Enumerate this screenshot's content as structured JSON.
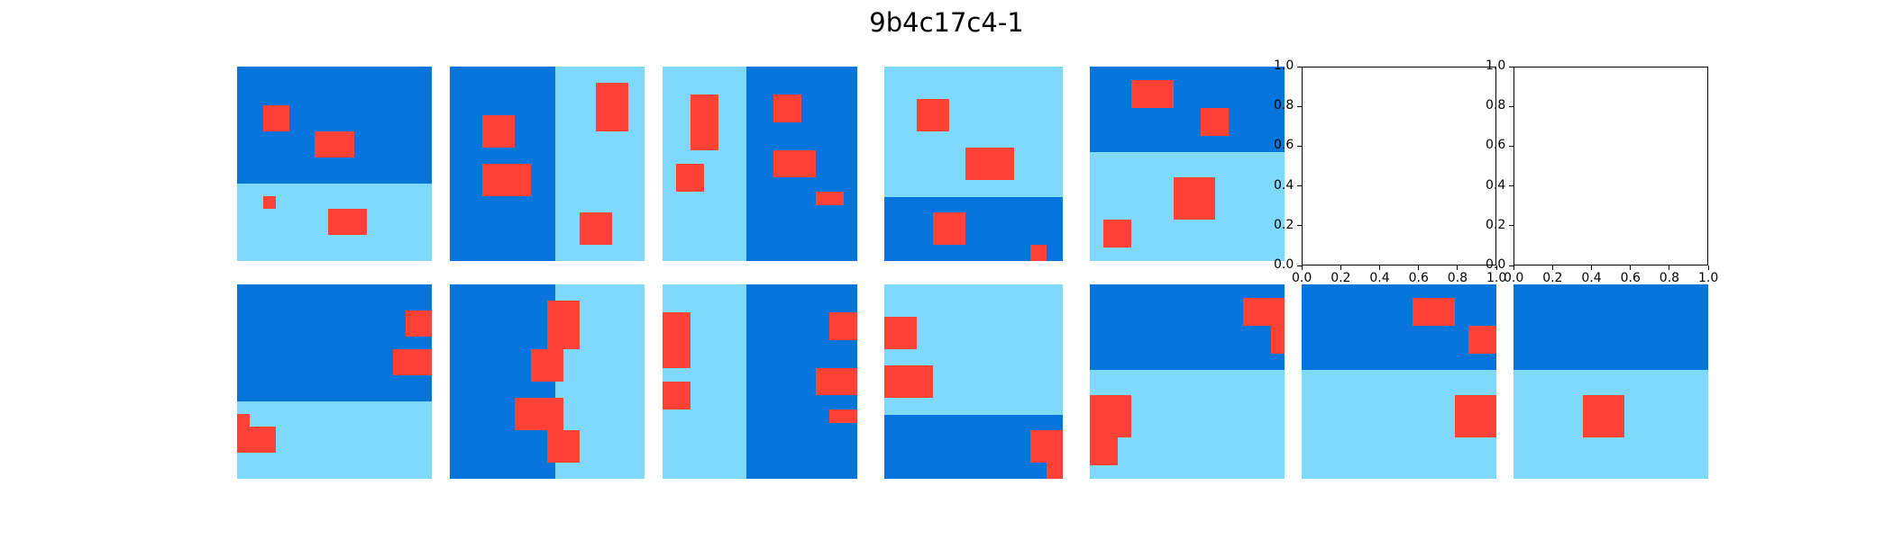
{
  "title": "9b4c17c4-1",
  "colors": {
    "dark": "#0475DA",
    "light": "#7FD9FC",
    "red": "#FF4136"
  },
  "panels": [
    {
      "name": "train-1-input",
      "row": 0,
      "col": 0,
      "split": "h",
      "first": "dark",
      "cut": 0.6,
      "grid": [
        15,
        15
      ],
      "reds": [
        [
          2,
          3,
          2,
          2
        ],
        [
          6,
          5,
          3,
          2
        ],
        [
          2,
          10,
          1,
          1
        ],
        [
          7,
          11,
          3,
          2
        ]
      ]
    },
    {
      "name": "train-2-input",
      "row": 0,
      "col": 1,
      "split": "v",
      "first": "dark",
      "cut": 0.54,
      "grid": [
        12,
        12
      ],
      "reds": [
        [
          2,
          3,
          2,
          2
        ],
        [
          2,
          6,
          3,
          2
        ],
        [
          9,
          1,
          2,
          3
        ],
        [
          8,
          9,
          2,
          2
        ]
      ]
    },
    {
      "name": "train-3-input",
      "row": 0,
      "col": 2,
      "split": "v",
      "first": "light",
      "cut": 0.43,
      "grid": [
        14,
        14
      ],
      "reds": [
        [
          2,
          2,
          2,
          4
        ],
        [
          1,
          7,
          2,
          2
        ],
        [
          8,
          2,
          2,
          2
        ],
        [
          8,
          6,
          3,
          2
        ],
        [
          11,
          9,
          2,
          1
        ]
      ]
    },
    {
      "name": "train-4-input",
      "row": 0,
      "col": 3,
      "split": "h",
      "first": "light",
      "cut": 0.67,
      "grid": [
        11,
        12
      ],
      "reds": [
        [
          2,
          2,
          2,
          2
        ],
        [
          5,
          5,
          3,
          2
        ],
        [
          3,
          9,
          2,
          2
        ],
        [
          9,
          11,
          1,
          1
        ]
      ]
    },
    {
      "name": "train-5-input",
      "row": 0,
      "col": 4,
      "split": "h",
      "first": "dark",
      "cut": 0.44,
      "grid": [
        14,
        14
      ],
      "reds": [
        [
          3,
          1,
          3,
          2
        ],
        [
          8,
          3,
          2,
          2
        ],
        [
          6,
          8,
          3,
          3
        ],
        [
          1,
          11,
          2,
          2
        ]
      ]
    },
    {
      "name": "train-1-output",
      "row": 1,
      "col": 0,
      "split": "h",
      "first": "dark",
      "cut": 0.6,
      "grid": [
        15,
        15
      ],
      "reds": [
        [
          13,
          2,
          2,
          2
        ],
        [
          12,
          5,
          3,
          2
        ],
        [
          0,
          10,
          1,
          1
        ],
        [
          0,
          11,
          3,
          2
        ]
      ]
    },
    {
      "name": "train-2-output",
      "row": 1,
      "col": 1,
      "split": "v",
      "first": "dark",
      "cut": 0.54,
      "grid": [
        12,
        12
      ],
      "reds": [
        [
          5,
          4,
          2,
          2
        ],
        [
          4,
          7,
          3,
          2
        ],
        [
          6,
          1,
          2,
          3
        ],
        [
          6,
          9,
          2,
          2
        ]
      ]
    },
    {
      "name": "train-3-output",
      "row": 1,
      "col": 2,
      "split": "v",
      "first": "light",
      "cut": 0.43,
      "grid": [
        14,
        14
      ],
      "reds": [
        [
          0,
          2,
          2,
          4
        ],
        [
          0,
          7,
          2,
          2
        ],
        [
          12,
          2,
          2,
          2
        ],
        [
          11,
          6,
          3,
          2
        ],
        [
          12,
          9,
          2,
          1
        ]
      ]
    },
    {
      "name": "train-4-output",
      "row": 1,
      "col": 3,
      "split": "h",
      "first": "light",
      "cut": 0.67,
      "grid": [
        11,
        12
      ],
      "reds": [
        [
          0,
          2,
          2,
          2
        ],
        [
          0,
          5,
          3,
          2
        ],
        [
          9,
          9,
          2,
          2
        ],
        [
          10,
          11,
          1,
          1
        ]
      ]
    },
    {
      "name": "train-5-output",
      "row": 1,
      "col": 4,
      "split": "h",
      "first": "dark",
      "cut": 0.44,
      "grid": [
        14,
        14
      ],
      "reds": [
        [
          11,
          1,
          3,
          2
        ],
        [
          13,
          3,
          1,
          2
        ],
        [
          0,
          8,
          3,
          3
        ],
        [
          0,
          11,
          2,
          2
        ]
      ]
    },
    {
      "name": "test-input",
      "row": 1,
      "col": 5,
      "split": "h",
      "first": "dark",
      "cut": 0.44,
      "grid": [
        14,
        14
      ],
      "reds": [
        [
          8,
          1,
          3,
          2
        ],
        [
          12,
          3,
          2,
          2
        ],
        [
          11,
          8,
          3,
          3
        ]
      ]
    },
    {
      "name": "test-output",
      "row": 1,
      "col": 6,
      "split": "h",
      "first": "dark",
      "cut": 0.44,
      "grid": [
        14,
        14
      ],
      "reds": [
        [
          5,
          8,
          3,
          3
        ]
      ]
    }
  ],
  "empty_axes": [
    {
      "name": "empty-axes-1",
      "row": 0,
      "col": 5
    },
    {
      "name": "empty-axes-2",
      "row": 0,
      "col": 6
    }
  ],
  "tick_labels": [
    "0.0",
    "0.2",
    "0.4",
    "0.6",
    "0.8",
    "1.0"
  ]
}
